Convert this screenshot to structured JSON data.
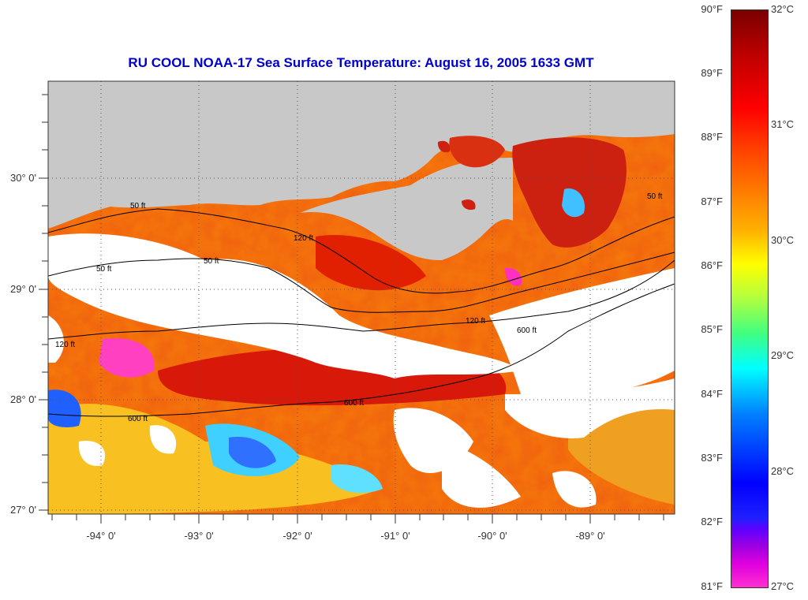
{
  "title": "RU COOL  NOAA-17  Sea Surface Temperature:  August 16, 2005 1633 GMT",
  "axes": {
    "x_ticks": [
      "-94° 0'",
      "-93° 0'",
      "-92° 0'",
      "-91° 0'",
      "-90° 0'",
      "-89° 0'"
    ],
    "y_ticks": [
      "30° 0'",
      "29° 0'",
      "28° 0'",
      "27° 0'"
    ]
  },
  "contour_labels": [
    "50 ft",
    "50 ft",
    "50 ft",
    "50 ft",
    "120 ft",
    "120 ft",
    "120 ft",
    "600 ft",
    "600 ft",
    "600 ft"
  ],
  "colorbar": {
    "fahrenheit": [
      "90°F",
      "89°F",
      "88°F",
      "87°F",
      "86°F",
      "85°F",
      "84°F",
      "83°F",
      "82°F",
      "81°F"
    ],
    "celsius": [
      "32°C",
      "31°C",
      "30°C",
      "29°C",
      "28°C",
      "27°C"
    ]
  },
  "colors": {
    "land": "#c8c8c8",
    "cloud": "#ffffff",
    "title": "#0000cc"
  }
}
